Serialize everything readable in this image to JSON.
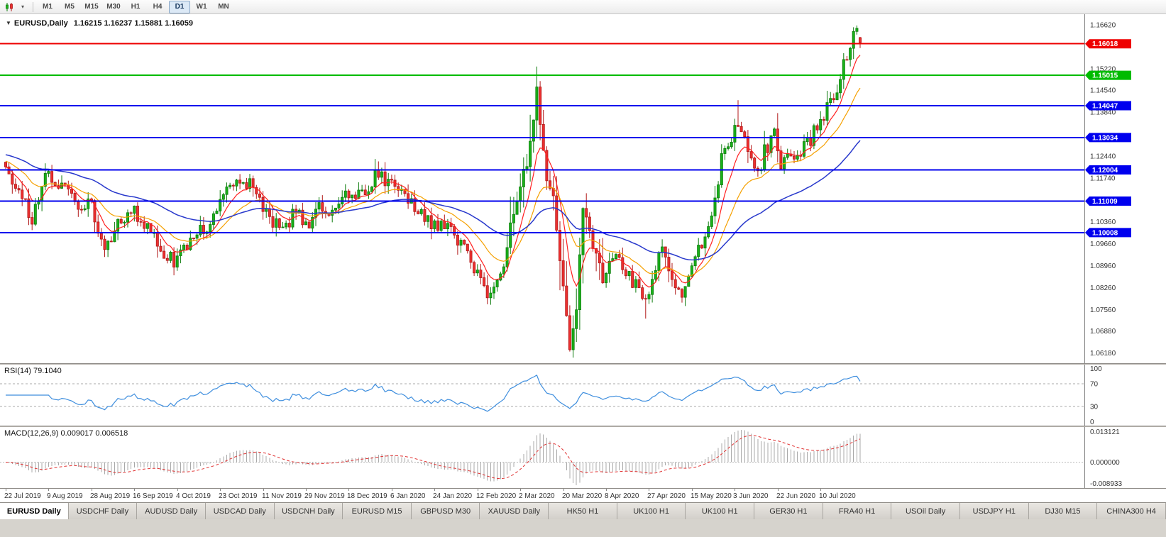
{
  "toolbar": {
    "timeframes": [
      "M1",
      "M5",
      "M15",
      "M30",
      "H1",
      "H4",
      "D1",
      "W1",
      "MN"
    ],
    "active_timeframe": "D1",
    "icons": [
      "candlestick-chart-icon",
      "dropdown-caret-icon"
    ]
  },
  "chart_data": {
    "type": "candlestick+indicators",
    "symbol_title": "EURUSD,Daily",
    "ohlc_display": "1.16215 1.16237 1.15881 1.16059",
    "bar_count": 260,
    "bars_per_label": 13,
    "x_labels": [
      "22 Jul 2019",
      "9 Aug 2019",
      "28 Aug 2019",
      "16 Sep 2019",
      "4 Oct 2019",
      "23 Oct 2019",
      "11 Nov 2019",
      "29 Nov 2019",
      "18 Dec 2019",
      "6 Jan 2020",
      "24 Jan 2020",
      "12 Feb 2020",
      "2 Mar 2020",
      "20 Mar 2020",
      "8 Apr 2020",
      "27 Apr 2020",
      "15 May 2020",
      "3 Jun 2020",
      "22 Jun 2020",
      "10 Jul 2020"
    ],
    "price_axis": {
      "min": 1.0585,
      "max": 1.1696,
      "ticks": [
        "1.16620",
        "1.15220",
        "1.14540",
        "1.13840",
        "1.12440",
        "1.11740",
        "1.10360",
        "1.09660",
        "1.08960",
        "1.08260",
        "1.07560",
        "1.06880",
        "1.06180"
      ]
    },
    "anchors": [
      [
        0,
        1.121
      ],
      [
        4,
        1.113
      ],
      [
        8,
        1.1045
      ],
      [
        12,
        1.119
      ],
      [
        16,
        1.116
      ],
      [
        22,
        1.109
      ],
      [
        26,
        1.1085
      ],
      [
        30,
        1.0935
      ],
      [
        34,
        1.104
      ],
      [
        39,
        1.107
      ],
      [
        44,
        1.1
      ],
      [
        48,
        1.093
      ],
      [
        52,
        1.0905
      ],
      [
        56,
        1.098
      ],
      [
        62,
        1.103
      ],
      [
        66,
        1.113
      ],
      [
        70,
        1.115
      ],
      [
        75,
        1.1165
      ],
      [
        78,
        1.107
      ],
      [
        84,
        1.101
      ],
      [
        88,
        1.107
      ],
      [
        91,
        1.102
      ],
      [
        95,
        1.108
      ],
      [
        100,
        1.107
      ],
      [
        104,
        1.113
      ],
      [
        108,
        1.112
      ],
      [
        112,
        1.118
      ],
      [
        117,
        1.116
      ],
      [
        122,
        1.11
      ],
      [
        130,
        1.1025
      ],
      [
        136,
        1.1
      ],
      [
        143,
        1.087
      ],
      [
        147,
        1.079
      ],
      [
        150,
        1.085
      ],
      [
        153,
        1.103
      ],
      [
        156,
        1.1135
      ],
      [
        159,
        1.128
      ],
      [
        161,
        1.145
      ],
      [
        164,
        1.118
      ],
      [
        166,
        1.11
      ],
      [
        168,
        1.092
      ],
      [
        170,
        1.072
      ],
      [
        171,
        1.065
      ],
      [
        173,
        1.077
      ],
      [
        175,
        1.11
      ],
      [
        178,
        1.095
      ],
      [
        181,
        1.086
      ],
      [
        184,
        1.093
      ],
      [
        188,
        1.087
      ],
      [
        192,
        1.082
      ],
      [
        194,
        1.077
      ],
      [
        196,
        1.087
      ],
      [
        199,
        1.095
      ],
      [
        202,
        1.084
      ],
      [
        205,
        1.081
      ],
      [
        209,
        1.092
      ],
      [
        212,
        1.098
      ],
      [
        215,
        1.111
      ],
      [
        217,
        1.123
      ],
      [
        220,
        1.129
      ],
      [
        222,
        1.136
      ],
      [
        225,
        1.125
      ],
      [
        228,
        1.118
      ],
      [
        230,
        1.126
      ],
      [
        233,
        1.131
      ],
      [
        235,
        1.122
      ],
      [
        237,
        1.123
      ],
      [
        240,
        1.125
      ],
      [
        243,
        1.128
      ],
      [
        246,
        1.134
      ],
      [
        249,
        1.14
      ],
      [
        252,
        1.143
      ],
      [
        254,
        1.153
      ],
      [
        256,
        1.16
      ],
      [
        258,
        1.165
      ],
      [
        259,
        1.16059
      ]
    ],
    "wick_overrides": [
      [
        52,
        "low",
        1.0879
      ],
      [
        147,
        "low",
        1.0778
      ],
      [
        161,
        "high",
        1.1495
      ],
      [
        171,
        "low",
        1.0636
      ],
      [
        194,
        "low",
        1.0727
      ],
      [
        222,
        "high",
        1.1422
      ],
      [
        258,
        "high",
        1.166
      ]
    ],
    "last_bar": {
      "open": 1.16215,
      "high": 1.16237,
      "low": 1.15881,
      "close": 1.16059
    },
    "candle_colors": {
      "up": {
        "fill": "#19B219",
        "stroke": "#0B7A0B"
      },
      "down": {
        "fill": "#ED3030",
        "stroke": "#B01818"
      }
    },
    "moving_averages": [
      {
        "name": "fast",
        "period": 8,
        "color": "#FF2020",
        "width": 1.2,
        "init_offset": 0
      },
      {
        "name": "medium",
        "period": 20,
        "color": "#F5A000",
        "width": 1.2,
        "init_offset": 0.002
      },
      {
        "name": "slow",
        "period": 55,
        "color": "#2838CC",
        "width": 1.5,
        "init_offset": 0.004
      }
    ],
    "hlines": [
      {
        "price": 1.16018,
        "color": "#EE0000",
        "width": 2
      },
      {
        "price": 1.15015,
        "color": "#00BB00",
        "width": 2
      },
      {
        "price": 1.14047,
        "color": "#0000EE",
        "width": 2
      },
      {
        "price": 1.13034,
        "color": "#0000EE",
        "width": 2
      },
      {
        "price": 1.12004,
        "color": "#0000EE",
        "width": 2
      },
      {
        "price": 1.11009,
        "color": "#0000EE",
        "width": 2
      },
      {
        "price": 1.10008,
        "color": "#0000EE",
        "width": 2
      }
    ],
    "rsi": {
      "label": "RSI(14) 79.1040",
      "period": 14,
      "last_value": 79.104,
      "levels": [
        100,
        70,
        30,
        0
      ],
      "line_color": "#3E8EDE"
    },
    "macd": {
      "label": "MACD(12,26,9) 0.009017 0.006518",
      "fast": 12,
      "slow": 26,
      "signal": 9,
      "values_display": [
        "0.009017",
        "0.006518"
      ],
      "ticks": [
        "0.013121",
        "0.000000",
        "-0.008933"
      ],
      "histogram_color": "#A8A8A8",
      "signal_color": "#E03030"
    }
  },
  "tabs": {
    "items": [
      {
        "label": "EURUSD Daily",
        "active": true
      },
      {
        "label": "USDCHF Daily",
        "active": false
      },
      {
        "label": "AUDUSD Daily",
        "active": false
      },
      {
        "label": "USDCAD Daily",
        "active": false
      },
      {
        "label": "USDCNH Daily",
        "active": false
      },
      {
        "label": "EURUSD M15",
        "active": false
      },
      {
        "label": "GBPUSD M30",
        "active": false
      },
      {
        "label": "XAUUSD Daily",
        "active": false
      },
      {
        "label": "HK50 H1",
        "active": false
      },
      {
        "label": "UK100 H1",
        "active": false
      },
      {
        "label": "UK100 H1",
        "active": false
      },
      {
        "label": "GER30 H1",
        "active": false
      },
      {
        "label": "FRA40 H1",
        "active": false
      },
      {
        "label": "USOil Daily",
        "active": false
      },
      {
        "label": "USDJPY H1",
        "active": false
      },
      {
        "label": "DJ30 M15",
        "active": false
      },
      {
        "label": "CHINA300 H4",
        "active": false
      }
    ]
  }
}
